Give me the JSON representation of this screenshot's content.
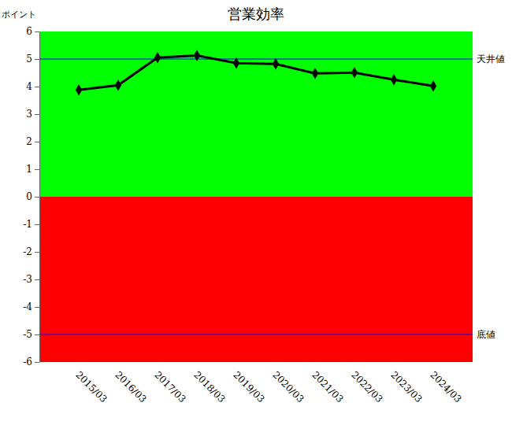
{
  "chart_data": {
    "type": "line",
    "title": "営業効率",
    "y_label": "ポイント",
    "categories": [
      "2015/03",
      "2016/03",
      "2017/03",
      "2018/03",
      "2019/03",
      "2020/03",
      "2021/03",
      "2022/03",
      "2023/03",
      "2024/03"
    ],
    "values": [
      3.88,
      4.05,
      5.05,
      5.13,
      4.85,
      4.82,
      4.48,
      4.51,
      4.25,
      4.02
    ],
    "color": "#000000",
    "marker": "diamond",
    "line_style": "solid",
    "ylim": [
      -6,
      6
    ],
    "yticks": [
      -6,
      -5,
      -4,
      -3,
      -2,
      -1,
      0,
      1,
      2,
      3,
      4,
      5,
      6
    ],
    "bands": [
      {
        "from": 0,
        "to": 6,
        "color": "#00ff00"
      },
      {
        "from": -6,
        "to": 0,
        "color": "#ff0000"
      }
    ],
    "annotations": [
      {
        "y": 5,
        "text": "天井値",
        "color": "#0000ff"
      },
      {
        "y": -5,
        "text": "底値",
        "color": "#0000ff"
      }
    ],
    "grid": false
  }
}
